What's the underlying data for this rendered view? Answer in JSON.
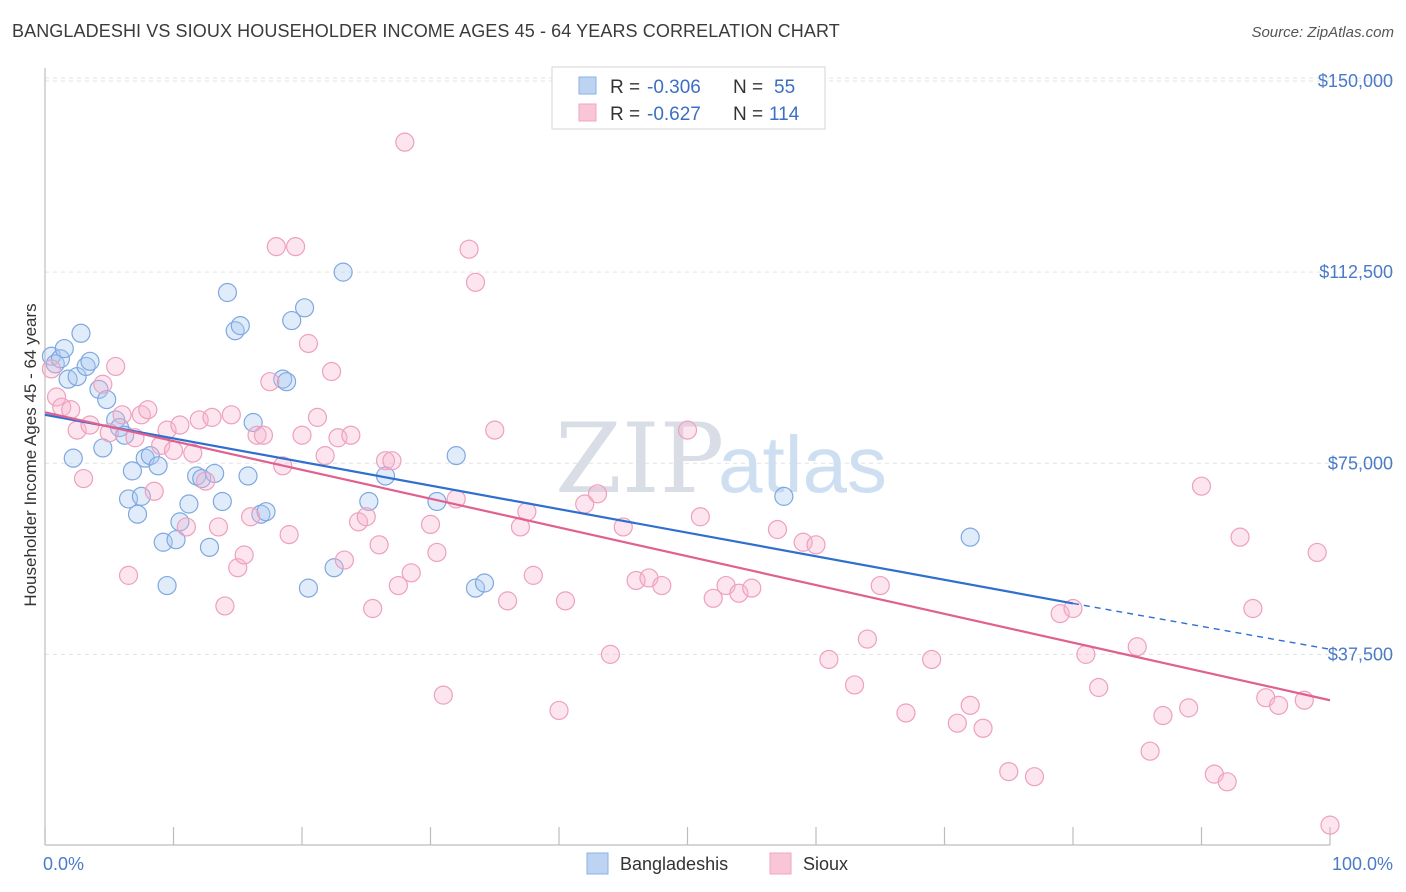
{
  "header": {
    "title": "BANGLADESHI VS SIOUX HOUSEHOLDER INCOME AGES 45 - 64 YEARS CORRELATION CHART",
    "source": "Source: ZipAtlas.com"
  },
  "watermark": {
    "zip": "ZIP",
    "atlas": "atlas"
  },
  "legend": {
    "r_label": "R =",
    "n_label": "N =",
    "items": [
      {
        "r": "-0.306",
        "n": "55"
      },
      {
        "r": "-0.627",
        "n": "114"
      }
    ]
  },
  "bottom_legend": [
    "Bangladeshis",
    "Sioux"
  ],
  "chart_data": {
    "type": "scatter",
    "ylabel": "Householder Income Ages 45 - 64 years",
    "xlabel": "",
    "x_tick_labels": [
      "0.0%",
      "100.0%"
    ],
    "y_tick_labels": [
      "$150,000",
      "$112,500",
      "$75,000",
      "$37,500"
    ],
    "y_ticks": [
      150000,
      112500,
      75000,
      37500
    ],
    "xlim": [
      0,
      100
    ],
    "ylim": [
      0,
      155000
    ],
    "grid": true,
    "colors": {
      "bangladeshis": "#8ab2e8",
      "sioux": "#f2a5c0",
      "blue_line": "#2f6fcf",
      "pink_line": "#e0618f"
    },
    "series": [
      {
        "name": "Bangladeshis",
        "trend": {
          "x": [
            0,
            80,
            100
          ],
          "y": [
            84500,
            47500,
            38500
          ],
          "solid_until": 80
        },
        "points": [
          [
            0.5,
            96000
          ],
          [
            0.8,
            94500
          ],
          [
            1.2,
            95500
          ],
          [
            1.5,
            97500
          ],
          [
            1.8,
            91500
          ],
          [
            2.2,
            76000
          ],
          [
            2.5,
            92000
          ],
          [
            2.8,
            100500
          ],
          [
            3.2,
            94000
          ],
          [
            3.5,
            95000
          ],
          [
            4.2,
            89500
          ],
          [
            4.5,
            78000
          ],
          [
            4.8,
            87500
          ],
          [
            5.5,
            83500
          ],
          [
            5.8,
            82000
          ],
          [
            6.2,
            80500
          ],
          [
            6.5,
            68000
          ],
          [
            6.8,
            73500
          ],
          [
            7.2,
            65000
          ],
          [
            7.5,
            68500
          ],
          [
            7.8,
            76000
          ],
          [
            8.2,
            76500
          ],
          [
            8.8,
            74500
          ],
          [
            9.2,
            59500
          ],
          [
            9.5,
            51000
          ],
          [
            10.2,
            60000
          ],
          [
            10.5,
            63500
          ],
          [
            11.2,
            67000
          ],
          [
            11.8,
            72500
          ],
          [
            12.2,
            72000
          ],
          [
            12.8,
            58500
          ],
          [
            13.2,
            73000
          ],
          [
            13.8,
            67500
          ],
          [
            14.2,
            108500
          ],
          [
            14.8,
            101000
          ],
          [
            15.2,
            102000
          ],
          [
            15.8,
            72500
          ],
          [
            16.2,
            83000
          ],
          [
            16.8,
            65000
          ],
          [
            17.2,
            65500
          ],
          [
            18.5,
            91500
          ],
          [
            18.8,
            91000
          ],
          [
            19.2,
            103000
          ],
          [
            20.2,
            105500
          ],
          [
            20.5,
            50500
          ],
          [
            22.5,
            54500
          ],
          [
            23.2,
            112500
          ],
          [
            25.2,
            67500
          ],
          [
            26.5,
            72500
          ],
          [
            30.5,
            67500
          ],
          [
            32,
            76500
          ],
          [
            33.5,
            50500
          ],
          [
            34.2,
            51500
          ],
          [
            57.5,
            68500
          ],
          [
            72,
            60500
          ]
        ]
      },
      {
        "name": "Sioux",
        "trend": {
          "x": [
            0,
            100
          ],
          "y": [
            85000,
            28500
          ]
        },
        "points": [
          [
            0.5,
            93500
          ],
          [
            0.9,
            88000
          ],
          [
            1.3,
            86000
          ],
          [
            2,
            85500
          ],
          [
            2.5,
            81500
          ],
          [
            3,
            72000
          ],
          [
            3.5,
            82500
          ],
          [
            4.5,
            90500
          ],
          [
            5,
            81000
          ],
          [
            5.5,
            94000
          ],
          [
            6,
            84500
          ],
          [
            6.5,
            53000
          ],
          [
            7,
            80000
          ],
          [
            7.5,
            84500
          ],
          [
            8,
            85500
          ],
          [
            8.5,
            69500
          ],
          [
            9,
            78500
          ],
          [
            9.5,
            81500
          ],
          [
            10,
            77500
          ],
          [
            10.5,
            82500
          ],
          [
            11,
            62500
          ],
          [
            11.5,
            77000
          ],
          [
            12,
            83500
          ],
          [
            12.5,
            71500
          ],
          [
            13,
            84000
          ],
          [
            13.5,
            62500
          ],
          [
            14,
            47000
          ],
          [
            14.5,
            84500
          ],
          [
            15,
            54500
          ],
          [
            15.5,
            57000
          ],
          [
            16,
            64500
          ],
          [
            16.5,
            80500
          ],
          [
            17,
            80500
          ],
          [
            17.5,
            91000
          ],
          [
            18,
            117500
          ],
          [
            18.5,
            74500
          ],
          [
            19,
            61000
          ],
          [
            19.5,
            117500
          ],
          [
            20,
            80500
          ],
          [
            20.5,
            98500
          ],
          [
            21.2,
            84000
          ],
          [
            21.8,
            76500
          ],
          [
            22.3,
            93000
          ],
          [
            22.8,
            80000
          ],
          [
            23.3,
            56000
          ],
          [
            23.8,
            80500
          ],
          [
            24.4,
            63500
          ],
          [
            25,
            64500
          ],
          [
            25.5,
            46500
          ],
          [
            26,
            59000
          ],
          [
            26.5,
            75500
          ],
          [
            27,
            75500
          ],
          [
            27.5,
            51000
          ],
          [
            28,
            138000
          ],
          [
            28.5,
            53500
          ],
          [
            30,
            63000
          ],
          [
            30.5,
            57500
          ],
          [
            31,
            29500
          ],
          [
            32,
            68000
          ],
          [
            33,
            117000
          ],
          [
            33.5,
            110500
          ],
          [
            35,
            81500
          ],
          [
            36,
            48000
          ],
          [
            37,
            62500
          ],
          [
            37.5,
            65500
          ],
          [
            38,
            53000
          ],
          [
            40,
            26500
          ],
          [
            40.5,
            48000
          ],
          [
            42,
            67000
          ],
          [
            43,
            69000
          ],
          [
            44,
            37500
          ],
          [
            45,
            62500
          ],
          [
            46,
            52000
          ],
          [
            47,
            52500
          ],
          [
            48,
            51000
          ],
          [
            50,
            81500
          ],
          [
            51,
            64500
          ],
          [
            52,
            48500
          ],
          [
            53,
            51000
          ],
          [
            54,
            49500
          ],
          [
            55,
            50500
          ],
          [
            57,
            62000
          ],
          [
            59,
            59500
          ],
          [
            60,
            59000
          ],
          [
            61,
            36500
          ],
          [
            63,
            31500
          ],
          [
            64,
            40500
          ],
          [
            65,
            51000
          ],
          [
            67,
            26000
          ],
          [
            69,
            36500
          ],
          [
            71,
            24000
          ],
          [
            72,
            27500
          ],
          [
            73,
            23000
          ],
          [
            75,
            14500
          ],
          [
            77,
            13500
          ],
          [
            79,
            45500
          ],
          [
            80,
            46500
          ],
          [
            81,
            37500
          ],
          [
            82,
            31000
          ],
          [
            85,
            39000
          ],
          [
            86,
            18500
          ],
          [
            87,
            25500
          ],
          [
            89,
            27000
          ],
          [
            90,
            70500
          ],
          [
            91,
            14000
          ],
          [
            92,
            12500
          ],
          [
            93,
            60500
          ],
          [
            94,
            46500
          ],
          [
            95,
            29000
          ],
          [
            96,
            27500
          ],
          [
            98,
            28500
          ],
          [
            99,
            57500
          ],
          [
            100,
            4000
          ]
        ]
      }
    ]
  }
}
